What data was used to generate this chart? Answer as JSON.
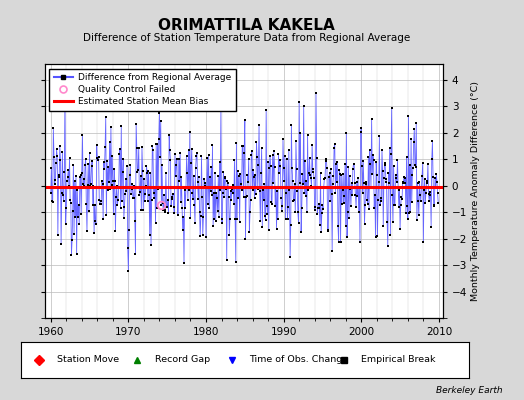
{
  "title": "ORIMATTILA KAKELA",
  "subtitle": "Difference of Station Temperature Data from Regional Average",
  "ylabel": "Monthly Temperature Anomaly Difference (°C)",
  "xlabel_years": [
    1960,
    1970,
    1980,
    1990,
    2000,
    2010
  ],
  "yticks": [
    -4,
    -3,
    -2,
    -1,
    0,
    1,
    2,
    3,
    4
  ],
  "ylim": [
    -5.0,
    4.6
  ],
  "xlim": [
    1959.2,
    2010.5
  ],
  "mean_bias": -0.05,
  "bg_color": "#d8d8d8",
  "plot_bg_color": "#ffffff",
  "line_color": "#5555ff",
  "bias_color": "#ff0000",
  "marker_color": "#000000",
  "qc_color": "#ff88cc",
  "watermark": "Berkeley Earth",
  "seed": 42,
  "n_years": 50,
  "start_year": 1960
}
